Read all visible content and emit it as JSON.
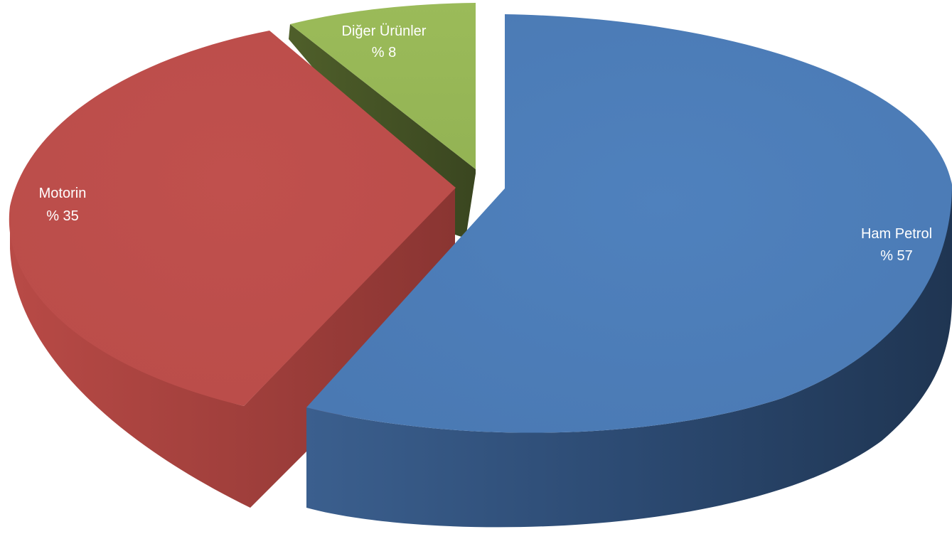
{
  "chart_data": {
    "type": "pie",
    "style": "3d-exploded",
    "title": "",
    "slices": [
      {
        "name": "Ham Petrol",
        "value": 57,
        "label": "% 57",
        "color": "#4f81bd"
      },
      {
        "name": "Motorin",
        "value": 35,
        "label": "% 35",
        "color": "#c0504d"
      },
      {
        "name": "Diğer Ürünler",
        "value": 8,
        "label": "% 8",
        "color": "#9bbb59"
      }
    ],
    "legend": "none"
  }
}
